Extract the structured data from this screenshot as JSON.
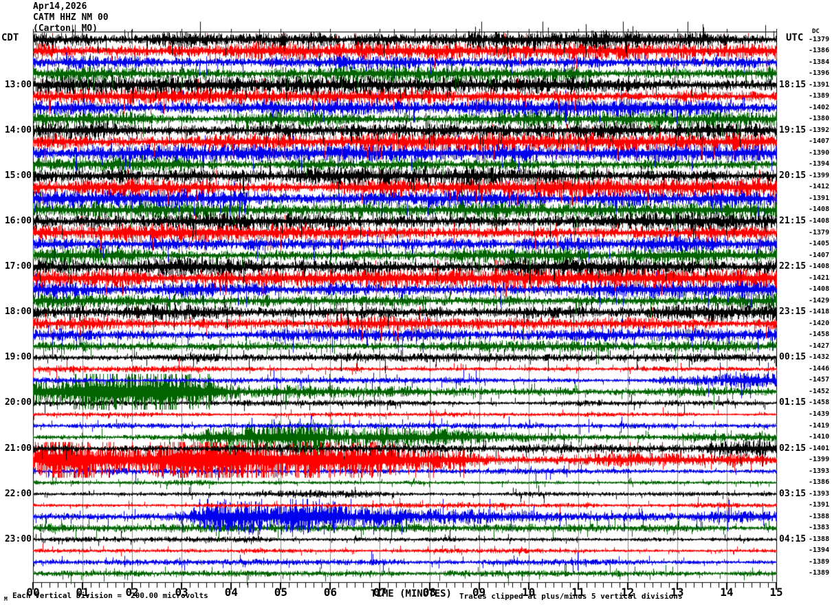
{
  "header": {
    "date": "Apr14,2026",
    "station": "CATM HHZ NM 00",
    "location": "(Carton, MO)"
  },
  "labels": {
    "left_tz": "CDT",
    "right_tz": "UTC",
    "dc_header": "DC",
    "xlabel": "TIME (MINUTES)"
  },
  "footer": {
    "scale_note": "Each Vertical Division =  200.00 microvolts",
    "clip_note": "Traces clipped at plus/minus 5 vertical divisions",
    "watermark": "M"
  },
  "chart_data": {
    "type": "line",
    "subtype": "helicorder-seismogram",
    "title": "CATM HHZ NM 00 (Carton, MO) Apr14,2026",
    "x_axis": {
      "label": "TIME (MINUTES)",
      "ticks": [
        "00",
        "01",
        "02",
        "03",
        "04",
        "05",
        "06",
        "07",
        "08",
        "09",
        "10",
        "11",
        "12",
        "13",
        "14",
        "15"
      ],
      "minutes_per_line": 15,
      "minor_ticks_per_minute": 6
    },
    "scale": {
      "division_microvolts": 200.0,
      "clip_divisions": 5
    },
    "colors": {
      "trace_cycle": [
        "#000000",
        "#ff0000",
        "#0000ee",
        "#006400"
      ],
      "grid": "#888888",
      "frame": "#000000"
    },
    "left_time_labels": [
      "13:00",
      "14:00",
      "15:00",
      "16:00",
      "17:00",
      "18:00",
      "19:00",
      "20:00",
      "21:00",
      "22:00",
      "23:00"
    ],
    "right_time_labels": [
      "18:15",
      "19:15",
      "20:15",
      "21:15",
      "22:15",
      "23:15",
      "00:15",
      "01:15",
      "02:15",
      "03:15",
      "04:15"
    ],
    "label_row_step": 4,
    "rows": [
      {
        "dc": -1379,
        "env": [
          [
            0,
            1.5
          ],
          [
            15,
            1.5
          ]
        ]
      },
      {
        "dc": -1386,
        "env": [
          [
            0,
            1.5
          ],
          [
            15,
            1.45
          ]
        ]
      },
      {
        "dc": -1384,
        "env": [
          [
            0,
            1.35
          ],
          [
            15,
            1.4
          ]
        ]
      },
      {
        "dc": -1396,
        "env": [
          [
            0,
            1.4
          ],
          [
            15,
            1.35
          ]
        ]
      },
      {
        "dc": -1391,
        "env": [
          [
            0,
            1.5
          ],
          [
            15,
            1.5
          ]
        ]
      },
      {
        "dc": -1389,
        "env": [
          [
            0,
            1.45
          ],
          [
            15,
            1.4
          ]
        ]
      },
      {
        "dc": -1402,
        "env": [
          [
            0,
            1.4
          ],
          [
            15,
            1.45
          ]
        ]
      },
      {
        "dc": -1380,
        "env": [
          [
            0,
            1.3
          ],
          [
            15,
            1.3
          ]
        ]
      },
      {
        "dc": -1392,
        "env": [
          [
            0,
            1.5
          ],
          [
            15,
            1.55
          ]
        ]
      },
      {
        "dc": -1407,
        "env": [
          [
            0,
            1.5
          ],
          [
            6.4,
            1.5
          ],
          [
            6.9,
            2.7
          ],
          [
            7.7,
            1.7
          ],
          [
            15,
            1.5
          ]
        ]
      },
      {
        "dc": -1390,
        "env": [
          [
            0,
            1.5
          ],
          [
            15,
            1.45
          ]
        ]
      },
      {
        "dc": -1394,
        "env": [
          [
            0,
            1.4
          ],
          [
            15,
            1.35
          ]
        ]
      },
      {
        "dc": -1399,
        "env": [
          [
            0,
            1.55
          ],
          [
            15,
            1.5
          ]
        ]
      },
      {
        "dc": -1412,
        "env": [
          [
            0,
            1.6
          ],
          [
            6.6,
            1.6
          ],
          [
            7.3,
            2.3
          ],
          [
            8.3,
            1.7
          ],
          [
            15,
            1.6
          ]
        ]
      },
      {
        "dc": -1391,
        "env": [
          [
            0,
            1.5
          ],
          [
            15,
            1.5
          ]
        ]
      },
      {
        "dc": -1408,
        "env": [
          [
            0,
            1.4
          ],
          [
            15,
            1.4
          ]
        ]
      },
      {
        "dc": -1408,
        "env": [
          [
            0,
            1.6
          ],
          [
            15,
            1.55
          ]
        ]
      },
      {
        "dc": -1379,
        "env": [
          [
            0,
            1.7
          ],
          [
            15,
            1.65
          ]
        ]
      },
      {
        "dc": -1405,
        "env": [
          [
            0,
            1.55
          ],
          [
            15,
            1.5
          ]
        ]
      },
      {
        "dc": -1407,
        "env": [
          [
            0,
            1.45
          ],
          [
            15,
            1.45
          ]
        ]
      },
      {
        "dc": -1408,
        "env": [
          [
            0,
            1.6
          ],
          [
            15,
            1.6
          ]
        ]
      },
      {
        "dc": -1421,
        "env": [
          [
            0,
            1.75
          ],
          [
            15,
            1.7
          ]
        ]
      },
      {
        "dc": -1408,
        "env": [
          [
            0,
            1.55
          ],
          [
            15,
            1.5
          ]
        ]
      },
      {
        "dc": -1429,
        "env": [
          [
            0,
            1.45
          ],
          [
            15,
            1.4
          ]
        ]
      },
      {
        "dc": -1418,
        "env": [
          [
            0,
            1.55
          ],
          [
            15,
            1.5
          ]
        ]
      },
      {
        "dc": -1420,
        "env": [
          [
            0,
            1.35
          ],
          [
            15,
            1.3
          ]
        ]
      },
      {
        "dc": -1458,
        "env": [
          [
            0,
            1.15
          ],
          [
            15,
            1.1
          ]
        ]
      },
      {
        "dc": -1427,
        "env": [
          [
            0,
            1.0
          ],
          [
            15,
            0.95
          ]
        ]
      },
      {
        "dc": -1432,
        "env": [
          [
            0,
            0.8
          ],
          [
            15,
            0.7
          ]
        ]
      },
      {
        "dc": -1446,
        "env": [
          [
            0,
            0.6
          ],
          [
            15,
            0.55
          ]
        ]
      },
      {
        "dc": -1457,
        "env": [
          [
            0,
            0.6
          ],
          [
            6,
            0.55
          ],
          [
            12.4,
            0.6
          ],
          [
            12.9,
            1.5
          ],
          [
            13.6,
            1.3
          ],
          [
            14.1,
            2.2
          ],
          [
            14.7,
            2.6
          ],
          [
            15,
            2.4
          ]
        ]
      },
      {
        "dc": -1452,
        "env": [
          [
            0,
            3.0
          ],
          [
            0.8,
            4.6
          ],
          [
            2.2,
            4.8
          ],
          [
            3.4,
            4.2
          ],
          [
            4.1,
            2.6
          ],
          [
            4.35,
            1.5
          ],
          [
            6,
            1.3
          ],
          [
            9,
            1.0
          ],
          [
            12,
            0.85
          ],
          [
            15,
            0.8
          ]
        ]
      },
      {
        "dc": -1458,
        "env": [
          [
            0,
            0.6
          ],
          [
            15,
            0.55
          ]
        ]
      },
      {
        "dc": -1439,
        "env": [
          [
            0,
            0.4
          ],
          [
            15,
            0.38
          ]
        ]
      },
      {
        "dc": -1419,
        "env": [
          [
            0,
            0.5
          ],
          [
            15,
            0.48
          ]
        ]
      },
      {
        "dc": -1410,
        "env": [
          [
            0,
            0.5
          ],
          [
            2.9,
            0.6
          ],
          [
            3.4,
            1.5
          ],
          [
            4.4,
            2.4
          ],
          [
            5.0,
            3.2
          ],
          [
            5.9,
            3.4
          ],
          [
            6.5,
            2.6
          ],
          [
            7.3,
            1.8
          ],
          [
            8.5,
            1.3
          ],
          [
            10,
            1.0
          ],
          [
            12.5,
            0.85
          ],
          [
            15,
            0.75
          ]
        ]
      },
      {
        "dc": -1401,
        "env": [
          [
            0,
            0.85
          ],
          [
            9,
            0.7
          ],
          [
            12.5,
            0.8
          ],
          [
            13.5,
            1.1
          ],
          [
            14.3,
            1.4
          ],
          [
            15,
            1.5
          ]
        ]
      },
      {
        "dc": -1399,
        "env": [
          [
            0,
            2.6
          ],
          [
            0.4,
            4.2
          ],
          [
            1.2,
            4.8
          ],
          [
            3.0,
            4.8
          ],
          [
            5.0,
            4.5
          ],
          [
            7.0,
            4.2
          ],
          [
            8.5,
            3.4
          ],
          [
            9.0,
            2.0
          ],
          [
            9.5,
            1.5
          ],
          [
            11,
            1.2
          ],
          [
            13,
            1.1
          ],
          [
            15,
            1.0
          ]
        ]
      },
      {
        "dc": -1393,
        "env": [
          [
            0,
            0.6
          ],
          [
            15,
            0.5
          ]
        ]
      },
      {
        "dc": -1386,
        "env": [
          [
            0,
            0.5
          ],
          [
            15,
            0.45
          ]
        ]
      },
      {
        "dc": -1393,
        "env": [
          [
            0,
            0.45
          ],
          [
            4.2,
            0.5
          ],
          [
            4.7,
            0.95
          ],
          [
            5.6,
            0.7
          ],
          [
            6.4,
            0.9
          ],
          [
            7.3,
            0.55
          ],
          [
            15,
            0.45
          ]
        ]
      },
      {
        "dc": -1391,
        "env": [
          [
            0,
            0.5
          ],
          [
            15,
            0.45
          ]
        ]
      },
      {
        "dc": -1388,
        "env": [
          [
            0,
            0.7
          ],
          [
            2.9,
            0.8
          ],
          [
            3.4,
            2.4
          ],
          [
            4.2,
            3.6
          ],
          [
            5.0,
            3.0
          ],
          [
            5.8,
            3.3
          ],
          [
            6.5,
            2.5
          ],
          [
            7.5,
            2.0
          ],
          [
            9,
            1.6
          ],
          [
            11,
            1.4
          ],
          [
            13,
            1.2
          ],
          [
            15,
            1.05
          ]
        ]
      },
      {
        "dc": -1383,
        "env": [
          [
            0,
            0.85
          ],
          [
            7,
            0.7
          ],
          [
            15,
            0.65
          ]
        ]
      },
      {
        "dc": -1388,
        "env": [
          [
            0,
            0.45
          ],
          [
            3.9,
            0.5
          ],
          [
            4.4,
            0.75
          ],
          [
            5.1,
            0.5
          ],
          [
            15,
            0.42
          ]
        ]
      },
      {
        "dc": -1394,
        "env": [
          [
            0,
            0.45
          ],
          [
            15,
            0.42
          ]
        ]
      },
      {
        "dc": -1389,
        "env": [
          [
            0,
            0.55
          ],
          [
            15,
            0.5
          ]
        ]
      },
      {
        "dc": -1389,
        "env": [
          [
            0,
            0.55
          ],
          [
            15,
            0.5
          ]
        ]
      }
    ]
  }
}
